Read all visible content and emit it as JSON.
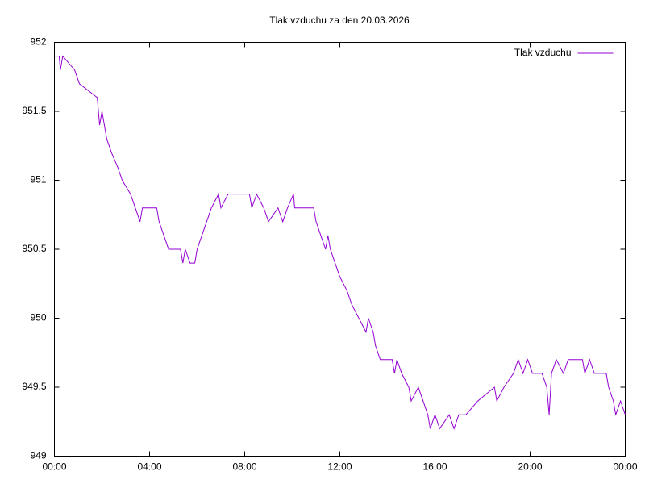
{
  "chart_data": {
    "type": "line",
    "title": "Tlak vzduchu za den 20.03.2026",
    "x": [
      0,
      0.2,
      0.25,
      0.35,
      0.85,
      1.05,
      1.8,
      1.9,
      2.0,
      2.2,
      2.4,
      2.65,
      2.85,
      3.2,
      3.4,
      3.6,
      3.7,
      4.3,
      4.4,
      4.6,
      4.8,
      5.3,
      5.4,
      5.5,
      5.7,
      5.9,
      6.0,
      6.2,
      6.4,
      6.6,
      6.9,
      7.0,
      7.3,
      8.2,
      8.3,
      8.5,
      8.8,
      9.0,
      9.4,
      9.6,
      9.8,
      10.05,
      10.1,
      10.9,
      11.0,
      11.2,
      11.4,
      11.5,
      11.6,
      11.8,
      12.0,
      12.3,
      12.5,
      12.8,
      13.1,
      13.2,
      13.4,
      13.5,
      13.7,
      14.2,
      14.3,
      14.4,
      14.6,
      14.9,
      15.0,
      15.3,
      15.5,
      15.7,
      15.8,
      16.0,
      16.2,
      16.6,
      16.8,
      17.0,
      17.3,
      17.8,
      18.5,
      18.6,
      18.9,
      19.3,
      19.5,
      19.7,
      19.9,
      20.1,
      20.5,
      20.7,
      20.8,
      20.9,
      21.1,
      21.4,
      21.6,
      22.2,
      22.3,
      22.5,
      22.7,
      23.2,
      23.3,
      23.5,
      23.6,
      23.8,
      24.0
    ],
    "series": [
      {
        "name": "Tlak vzduchu",
        "color": "#9400d3",
        "values": [
          951.9,
          951.9,
          951.8,
          951.9,
          951.8,
          951.7,
          951.6,
          951.4,
          951.5,
          951.3,
          951.2,
          951.1,
          951.0,
          950.9,
          950.8,
          950.7,
          950.8,
          950.8,
          950.7,
          950.6,
          950.5,
          950.5,
          950.4,
          950.5,
          950.4,
          950.4,
          950.5,
          950.6,
          950.7,
          950.8,
          950.9,
          950.8,
          950.9,
          950.9,
          950.8,
          950.9,
          950.8,
          950.7,
          950.8,
          950.7,
          950.8,
          950.9,
          950.8,
          950.8,
          950.7,
          950.6,
          950.5,
          950.6,
          950.5,
          950.4,
          950.3,
          950.2,
          950.1,
          950.0,
          949.9,
          950.0,
          949.9,
          949.8,
          949.7,
          949.7,
          949.6,
          949.7,
          949.6,
          949.5,
          949.4,
          949.5,
          949.4,
          949.3,
          949.2,
          949.3,
          949.2,
          949.3,
          949.2,
          949.3,
          949.3,
          949.4,
          949.5,
          949.4,
          949.5,
          949.6,
          949.7,
          949.6,
          949.7,
          949.6,
          949.6,
          949.5,
          949.3,
          949.6,
          949.7,
          949.6,
          949.7,
          949.7,
          949.6,
          949.7,
          949.6,
          949.6,
          949.5,
          949.4,
          949.3,
          949.4,
          949.3
        ]
      }
    ],
    "xlim": [
      0,
      24
    ],
    "xticks": [
      {
        "value": 0,
        "label": "00:00"
      },
      {
        "value": 4,
        "label": "04:00"
      },
      {
        "value": 8,
        "label": "08:00"
      },
      {
        "value": 12,
        "label": "12:00"
      },
      {
        "value": 16,
        "label": "16:00"
      },
      {
        "value": 20,
        "label": "20:00"
      },
      {
        "value": 24,
        "label": "00:00"
      }
    ],
    "ylim": [
      949,
      952
    ],
    "yticks": [
      949,
      {
        "value": 949.5,
        "label": "949.5"
      },
      950,
      {
        "value": 950.5,
        "label": "950.5"
      },
      951,
      {
        "value": 951.5,
        "label": "951.5"
      },
      952
    ],
    "grid": false,
    "legend": "top-right"
  }
}
